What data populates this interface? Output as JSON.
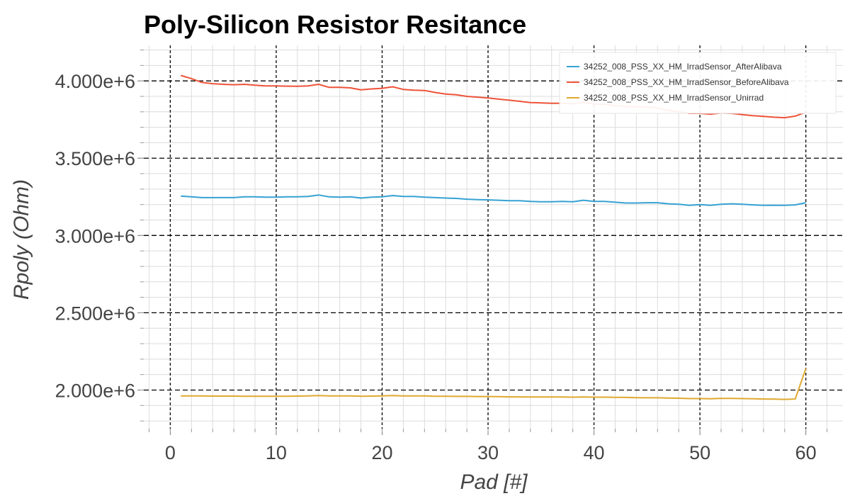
{
  "chart_data": {
    "type": "line",
    "title": "Poly-Silicon Resistor Resitance",
    "xlabel": "Pad [#]",
    "ylabel": "Rpoly (Ohm)",
    "xlim": [
      -2.5,
      63.5
    ],
    "ylim": [
      1750000,
      4230000
    ],
    "x_ticks": [
      0,
      10,
      20,
      30,
      40,
      50,
      60
    ],
    "y_ticks": [
      2000000,
      2500000,
      3000000,
      3500000,
      4000000
    ],
    "x_tick_labels": [
      "0",
      "10",
      "20",
      "30",
      "40",
      "50",
      "60"
    ],
    "y_tick_labels": [
      "2.000e+6",
      "2.500e+6",
      "3.000e+6",
      "3.500e+6",
      "4.000e+6"
    ],
    "grid": true,
    "legend_position": "top-right",
    "x": [
      1,
      2,
      3,
      4,
      5,
      6,
      7,
      8,
      9,
      10,
      11,
      12,
      13,
      14,
      15,
      16,
      17,
      18,
      19,
      20,
      21,
      22,
      23,
      24,
      25,
      26,
      27,
      28,
      29,
      30,
      31,
      32,
      33,
      34,
      35,
      36,
      37,
      38,
      39,
      40,
      41,
      42,
      43,
      44,
      45,
      46,
      47,
      48,
      49,
      50,
      51,
      52,
      53,
      54,
      55,
      56,
      57,
      58,
      59,
      60
    ],
    "series": [
      {
        "name": "34252_008_PSS_XX_HM_IrradSensor_AfterAlibava",
        "color": "#36a2d3",
        "values": [
          3255000,
          3250000,
          3245000,
          3245000,
          3245000,
          3245000,
          3250000,
          3250000,
          3248000,
          3248000,
          3250000,
          3250000,
          3252000,
          3262000,
          3250000,
          3248000,
          3250000,
          3242000,
          3248000,
          3250000,
          3258000,
          3252000,
          3252000,
          3248000,
          3245000,
          3242000,
          3240000,
          3235000,
          3232000,
          3230000,
          3228000,
          3225000,
          3225000,
          3220000,
          3218000,
          3218000,
          3220000,
          3218000,
          3228000,
          3220000,
          3220000,
          3215000,
          3210000,
          3210000,
          3212000,
          3212000,
          3205000,
          3202000,
          3195000,
          3200000,
          3195000,
          3202000,
          3205000,
          3202000,
          3198000,
          3195000,
          3196000,
          3195000,
          3198000,
          3212000
        ]
      },
      {
        "name": "34252_008_PSS_XX_HM_IrradSensor_BeforeAlibava",
        "color": "#ee5339",
        "values": [
          4035000,
          4015000,
          3990000,
          3982000,
          3978000,
          3975000,
          3978000,
          3972000,
          3968000,
          3968000,
          3966000,
          3965000,
          3968000,
          3978000,
          3958000,
          3958000,
          3955000,
          3942000,
          3948000,
          3952000,
          3962000,
          3945000,
          3940000,
          3938000,
          3925000,
          3915000,
          3910000,
          3900000,
          3895000,
          3890000,
          3882000,
          3875000,
          3868000,
          3860000,
          3858000,
          3855000,
          3855000,
          3852000,
          3860000,
          3850000,
          3848000,
          3840000,
          3835000,
          3832000,
          3830000,
          3825000,
          3810000,
          3800000,
          3790000,
          3790000,
          3785000,
          3792000,
          3790000,
          3782000,
          3775000,
          3770000,
          3765000,
          3762000,
          3772000,
          3798000
        ]
      },
      {
        "name": "34252_008_PSS_XX_HM_IrradSensor_Unirrad",
        "color": "#e0a830",
        "values": [
          1962000,
          1962000,
          1962000,
          1961000,
          1961000,
          1961000,
          1960000,
          1960000,
          1960000,
          1960000,
          1960000,
          1961000,
          1962000,
          1964000,
          1962000,
          1962000,
          1962000,
          1960000,
          1961000,
          1962000,
          1964000,
          1962000,
          1962000,
          1962000,
          1960000,
          1960000,
          1959000,
          1959000,
          1958000,
          1958000,
          1957000,
          1956000,
          1956000,
          1955000,
          1955000,
          1955000,
          1955000,
          1954000,
          1955000,
          1954000,
          1954000,
          1953000,
          1952000,
          1951000,
          1950000,
          1950000,
          1948000,
          1947000,
          1945000,
          1945000,
          1944000,
          1946000,
          1946000,
          1945000,
          1944000,
          1942000,
          1941000,
          1940000,
          1942000,
          2140000
        ]
      }
    ]
  }
}
